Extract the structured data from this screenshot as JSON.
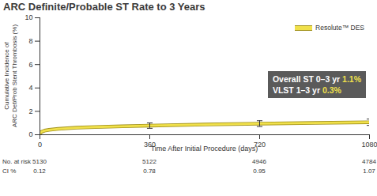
{
  "chart_data": {
    "type": "line",
    "title": "ARC Definite/Probable ST Rate to 3 Years",
    "xlabel": "Time After Initial Procedure (days)",
    "ylabel": "Cumulative Incidence of\nARC Def/Prob Stent Thrombosis (%)",
    "x": [
      0,
      5,
      15,
      30,
      60,
      120,
      180,
      270,
      360,
      540,
      720,
      900,
      1080
    ],
    "series": [
      {
        "name": "Resolute™ DES",
        "color": "#f0e04a",
        "values": [
          0.12,
          0.25,
          0.35,
          0.42,
          0.5,
          0.6,
          0.66,
          0.72,
          0.78,
          0.87,
          0.95,
          1.01,
          1.07
        ]
      }
    ],
    "error_bars": {
      "x": [
        360,
        720,
        1080
      ],
      "lower": [
        0.55,
        0.7,
        0.8
      ],
      "upper": [
        1.01,
        1.2,
        1.34
      ]
    },
    "xlim": [
      0,
      1080
    ],
    "xticks": [
      0,
      360,
      720,
      1080
    ],
    "ylim": [
      0,
      10
    ],
    "yticks": [
      0,
      2,
      4,
      6,
      8,
      10
    ],
    "grid": false,
    "legend": "top-right",
    "annotations": [
      {
        "text": "Overall ST 0–3 yr ",
        "highlight": "1.1%"
      },
      {
        "text": "VLST 1–3 yr ",
        "highlight": "0.3%"
      }
    ],
    "risk_table": {
      "x": [
        0,
        360,
        720,
        1080
      ],
      "rows": [
        {
          "label": "No. at risk",
          "values": [
            5130,
            5122,
            4946,
            4784
          ]
        },
        {
          "label": "CI %",
          "values": [
            0.12,
            0.78,
            0.95,
            1.07
          ]
        }
      ]
    }
  }
}
